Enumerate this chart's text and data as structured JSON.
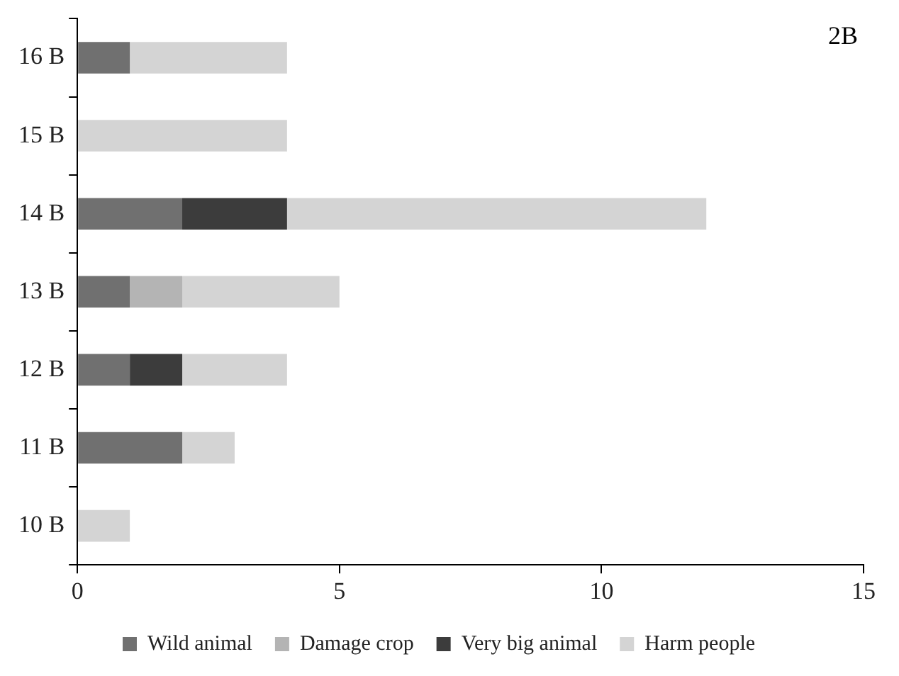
{
  "chart_data": {
    "type": "bar",
    "orientation": "horizontal",
    "stacked": true,
    "categories": [
      "16 B",
      "15 B",
      "14 B",
      "13 B",
      "12 B",
      "11 B",
      "10 B"
    ],
    "series": [
      {
        "name": "Wild animal",
        "color": "#707070",
        "values": [
          1,
          0,
          2,
          1,
          1,
          2,
          0
        ]
      },
      {
        "name": "Damage crop",
        "color": "#b4b4b4",
        "values": [
          0,
          0,
          0,
          1,
          0,
          0,
          0
        ]
      },
      {
        "name": "Very big animal",
        "color": "#3c3c3c",
        "values": [
          0,
          0,
          2,
          0,
          1,
          0,
          0
        ]
      },
      {
        "name": "Harm people",
        "color": "#d4d4d4",
        "values": [
          3,
          4,
          8,
          3,
          2,
          1,
          1
        ]
      }
    ],
    "xlim": [
      0,
      15
    ],
    "xticks": [
      0,
      5,
      10,
      15
    ],
    "grid": false,
    "legend": "bottom",
    "annotations": [
      "2B"
    ]
  }
}
